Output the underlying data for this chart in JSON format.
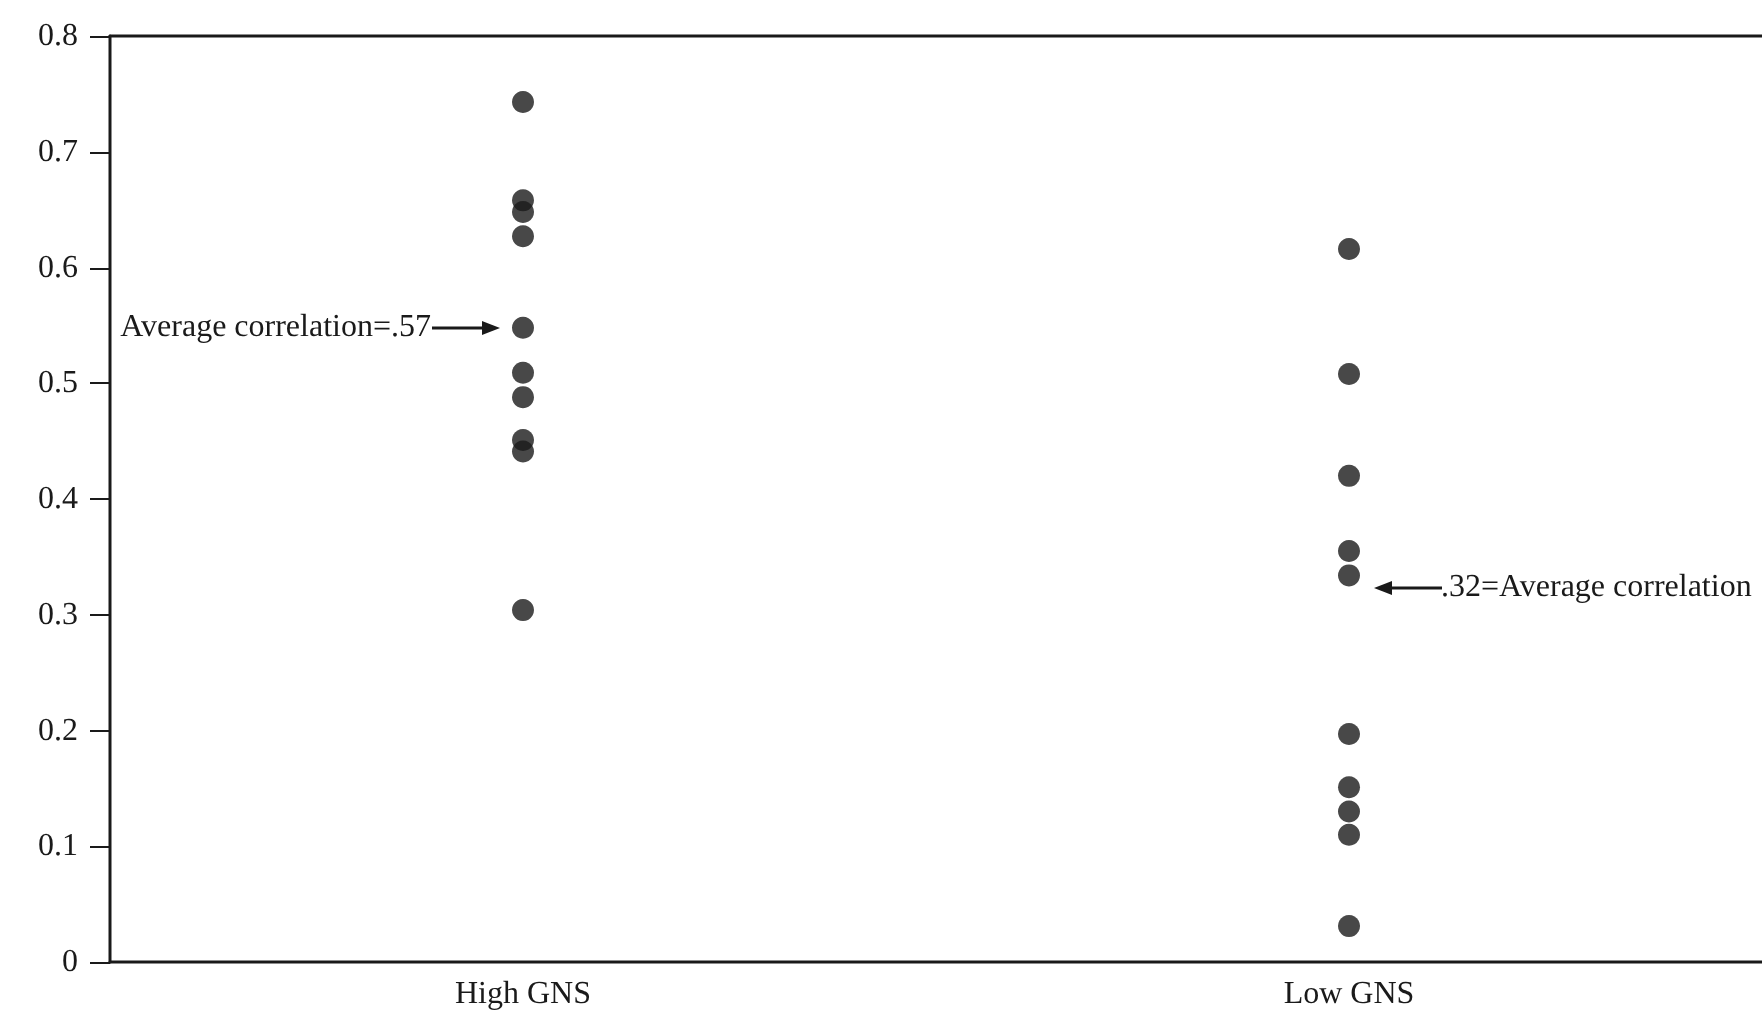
{
  "chart_data": {
    "type": "scatter",
    "categories": [
      "High GNS",
      "Low GNS"
    ],
    "series": [
      {
        "color": "#1a1a1a",
        "x": [
          "High GNS",
          "High GNS",
          "High GNS",
          "High GNS",
          "High GNS",
          "High GNS",
          "High GNS",
          "High GNS",
          "High GNS",
          "High GNS"
        ],
        "values": [
          0.743,
          0.658,
          0.648,
          0.627,
          0.548,
          0.509,
          0.488,
          0.451,
          0.441,
          0.304
        ]
      },
      {
        "color": "#1a1a1a",
        "x": [
          "Low GNS",
          "Low GNS",
          "Low GNS",
          "Low GNS",
          "Low GNS",
          "Low GNS",
          "Low GNS",
          "Low GNS",
          "Low GNS",
          "Low GNS"
        ],
        "values": [
          0.616,
          0.508,
          0.42,
          0.355,
          0.334,
          0.197,
          0.151,
          0.13,
          0.11,
          0.031
        ]
      }
    ],
    "ylim": [
      0,
      0.8
    ],
    "yticks": [
      0,
      0.1,
      0.2,
      0.3,
      0.4,
      0.5,
      0.6,
      0.7,
      0.8
    ],
    "grid": false,
    "marker": "circle",
    "annotations": [
      {
        "text": "Average correlation=.57",
        "x": "High GNS",
        "y": 0.548
      },
      {
        "text": ".32=Average correlation",
        "x": "Low GNS",
        "y": 0.323
      }
    ]
  }
}
